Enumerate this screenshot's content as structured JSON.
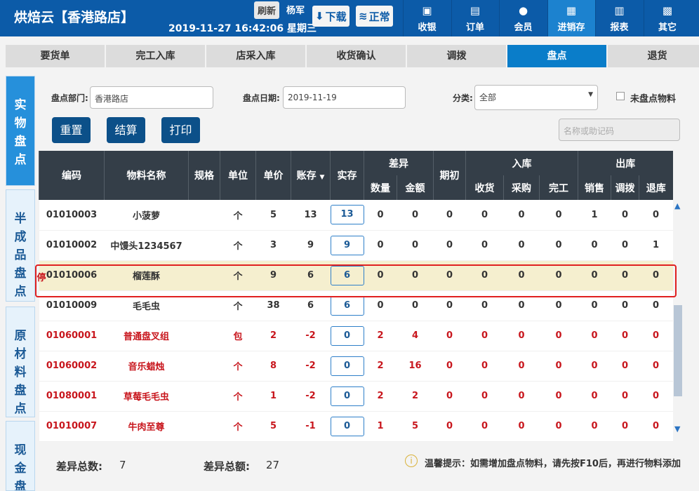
{
  "header": {
    "app": "烘焙云【香港路店】",
    "datetime": "2019-11-27 16:42:06 星期三",
    "refresh": "刷新",
    "user": "杨军",
    "download": "下载",
    "network": "正常",
    "nav": [
      {
        "label": "收银",
        "icon": "cashier-icon"
      },
      {
        "label": "订单",
        "icon": "order-icon"
      },
      {
        "label": "会员",
        "icon": "member-icon"
      },
      {
        "label": "进销存",
        "icon": "inventory-icon",
        "active": true
      },
      {
        "label": "报表",
        "icon": "report-icon"
      },
      {
        "label": "其它",
        "icon": "grid-icon"
      }
    ]
  },
  "tabs": [
    "要货单",
    "完工入库",
    "店采入库",
    "收货确认",
    "调拨",
    "盘点",
    "退货"
  ],
  "active_tab": "盘点",
  "side": [
    "实物盘点",
    "半成品盘点",
    "原材料盘点",
    "现金盘点"
  ],
  "filters": {
    "dept_label": "盘点部门:",
    "dept": "香港路店",
    "date_label": "盘点日期:",
    "date": "2019-11-19",
    "cat_label": "分类:",
    "cat": "全部",
    "unchecked_label": "未盘点物料",
    "search_placeholder": "名称或助记码"
  },
  "buttons": {
    "reset": "重置",
    "settle": "结算",
    "print": "打印"
  },
  "table": {
    "h": {
      "code": "编码",
      "name": "物料名称",
      "spec": "规格",
      "unit": "单位",
      "price": "单价",
      "book": "账存",
      "actual": "实存",
      "diff": "差异",
      "qty": "数量",
      "amt": "金额",
      "init": "期初",
      "in": "入库",
      "recv": "收货",
      "buy": "采购",
      "done": "完工",
      "out": "出库",
      "sale": "销售",
      "trans": "调拨",
      "ret": "退库"
    },
    "rows": [
      [
        "01010003",
        "小菠萝",
        "",
        "个",
        "5",
        "13",
        "13",
        "0",
        "0",
        "0",
        "0",
        "0",
        "0",
        "1",
        "0",
        "0"
      ],
      [
        "01010002",
        "中馒头1234567",
        "",
        "个",
        "3",
        "9",
        "9",
        "0",
        "0",
        "0",
        "0",
        "0",
        "0",
        "0",
        "0",
        "1"
      ],
      [
        "01010006",
        "榴莲酥",
        "",
        "个",
        "9",
        "6",
        "6",
        "0",
        "0",
        "0",
        "0",
        "0",
        "0",
        "0",
        "0",
        "0"
      ],
      [
        "01010009",
        "毛毛虫",
        "",
        "个",
        "38",
        "6",
        "6",
        "0",
        "0",
        "0",
        "0",
        "0",
        "0",
        "0",
        "0",
        "0"
      ],
      [
        "01060001",
        "普通盘叉组",
        "",
        "包",
        "2",
        "-2",
        "0",
        "2",
        "4",
        "0",
        "0",
        "0",
        "0",
        "0",
        "0",
        "0"
      ],
      [
        "01060002",
        "音乐蜡烛",
        "",
        "个",
        "8",
        "-2",
        "0",
        "2",
        "16",
        "0",
        "0",
        "0",
        "0",
        "0",
        "0",
        "0"
      ],
      [
        "01080001",
        "草莓毛毛虫",
        "",
        "个",
        "1",
        "-2",
        "0",
        "2",
        "2",
        "0",
        "0",
        "0",
        "0",
        "0",
        "0",
        "0"
      ],
      [
        "01010007",
        "牛肉至尊",
        "",
        "个",
        "5",
        "-1",
        "0",
        "1",
        "5",
        "0",
        "0",
        "0",
        "0",
        "0",
        "0",
        "0"
      ]
    ],
    "stopped_mark": "停"
  },
  "footer": {
    "diff_count_label": "差异总数:",
    "diff_count": "7",
    "diff_amount_label": "差异总额:",
    "diff_amount": "27",
    "tip": "温馨提示：如需增加盘点物料，请先按F10后，再进行物料添加"
  }
}
